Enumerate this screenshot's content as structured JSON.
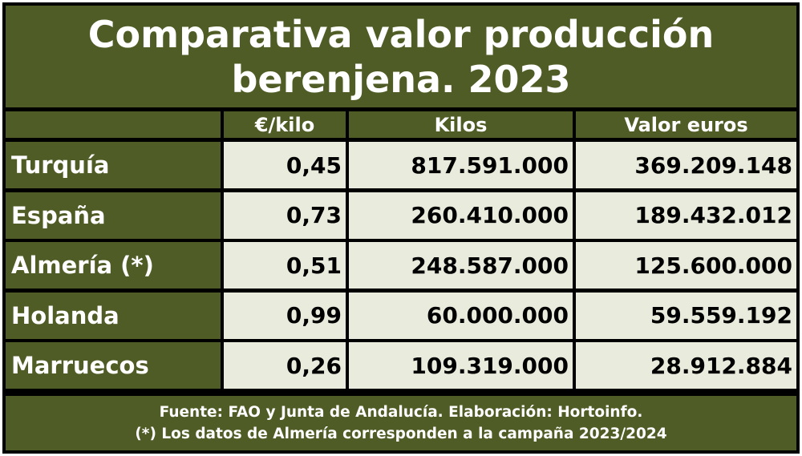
{
  "chart_data": {
    "type": "table",
    "title_line1": "Comparativa valor producción",
    "title_line2": "berenjena. 2023",
    "columns": [
      "",
      "€/kilo",
      "Kilos",
      "Valor euros"
    ],
    "rows": [
      {
        "label": "Turquía",
        "eur_kilo": "0,45",
        "kilos": "817.591.000",
        "valor": "369.209.148"
      },
      {
        "label": "España",
        "eur_kilo": "0,73",
        "kilos": "260.410.000",
        "valor": "189.432.012"
      },
      {
        "label": "Almería (*)",
        "eur_kilo": "0,51",
        "kilos": "248.587.000",
        "valor": "125.600.000"
      },
      {
        "label": "Holanda",
        "eur_kilo": "0,99",
        "kilos": "60.000.000",
        "valor": "59.559.192"
      },
      {
        "label": "Marruecos",
        "eur_kilo": "0,26",
        "kilos": "109.319.000",
        "valor": "28.912.884"
      }
    ],
    "footer_line1": "Fuente: FAO y Junta de Andalucía. Elaboración: Hortoinfo.",
    "footer_line2": "(*) Los datos de Almería corresponden a la campaña 2023/2024",
    "colors": {
      "header_bg": "#4f5c25",
      "cell_bg": "#e9ecdc",
      "border": "#000000",
      "header_text": "#ffffff"
    }
  }
}
